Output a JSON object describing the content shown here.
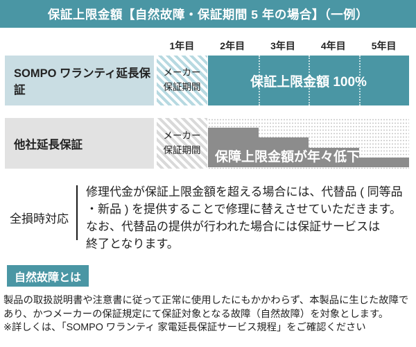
{
  "header": {
    "title": "保証上限金額【自然故障・保証期間 5 年の場合】（一例）"
  },
  "colors": {
    "teal": "#4a96a4",
    "light_blue": "#c9dde3",
    "light_gray": "#e2e2e2",
    "step_gray": "#8c8c8c"
  },
  "chart": {
    "years": [
      "1年目",
      "2年目",
      "3年目",
      "4年目",
      "5年目"
    ],
    "rows": [
      {
        "label": "SOMPO ワランティ延長保証",
        "maker_period": "メーカー\n保証期間",
        "bar_label": "保証上限金額 100%"
      },
      {
        "label": "他社延長保証",
        "maker_period": "メーカー\n保証期間",
        "bar_label": "保障上限金額が年々低下"
      }
    ],
    "sompo_coverage_percent": 100,
    "competitor_steps": [
      {
        "year": "2年目",
        "coverage_pct": 80
      },
      {
        "year": "3年目",
        "coverage_pct": 60
      },
      {
        "year": "4年目",
        "coverage_pct": 40
      },
      {
        "year": "5年目",
        "coverage_pct": 20
      }
    ]
  },
  "total_loss": {
    "label": "全損時対応",
    "text": "修理代金が保証上限金額を超える場合には、代替品 ( 同等品\n・新品 ) を提供することで修理に替えさせていただきます。\nなお、代替品の提供が行われた場合には保証サービスは\n終了となります。"
  },
  "natural_failure": {
    "button_label": "自然故障とは",
    "note": "製品の取扱説明書や注意書に従って正常に使用したにもかかわらず、本製品に生じた故障で\nあり、かつメーカーの保証規定にて保証対象となる故障（自然故障）を対象とします。\n※詳しくは、「SOMPO ワランティ 家電延長保証サービス規程」をご確認ください"
  }
}
